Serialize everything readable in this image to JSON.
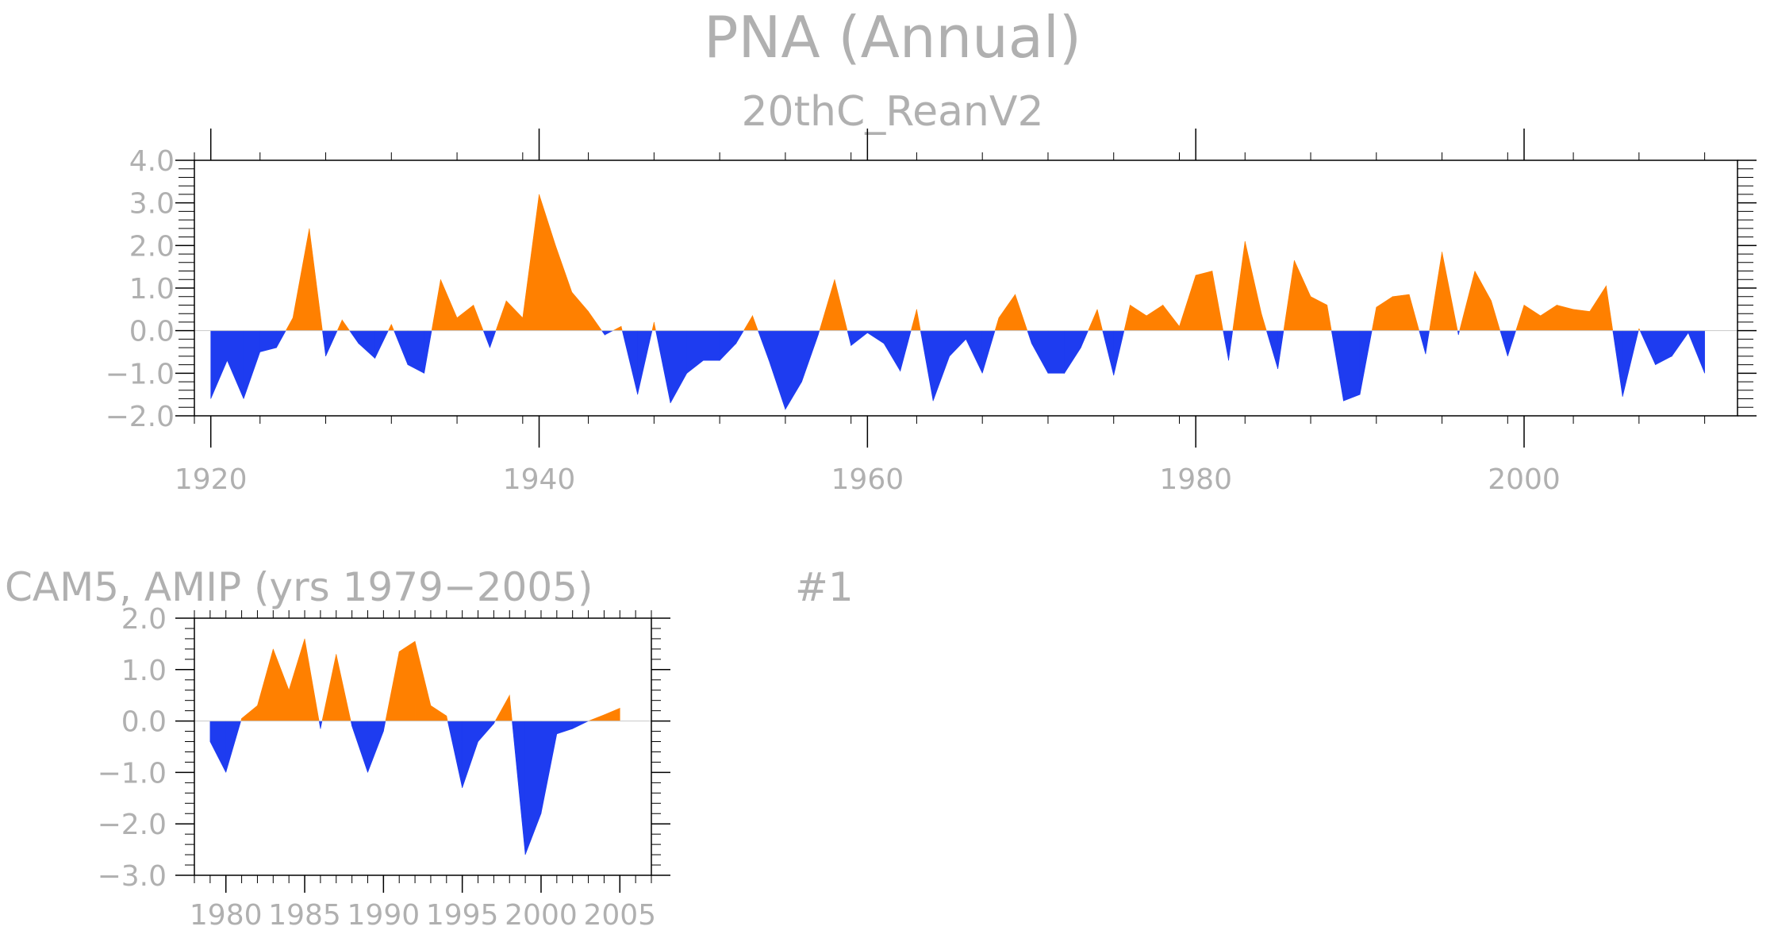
{
  "title": "PNA (Annual)",
  "colors": {
    "positive": "#ff8000",
    "negative": "#1e3cf0",
    "text": "#b0b0b0",
    "axis": "#000000"
  },
  "chart_data": [
    {
      "type": "area",
      "subtitle": "20thC_ReanV2",
      "xlim": [
        1919,
        2013
      ],
      "ylim": [
        -2.0,
        4.0
      ],
      "xticks": [
        1920,
        1940,
        1960,
        1980,
        2000
      ],
      "xtick_labels": [
        "1920",
        "1940",
        "1960",
        "1980",
        "2000"
      ],
      "yticks": [
        4.0,
        3.0,
        2.0,
        1.0,
        0.0,
        -1.0,
        -2.0
      ],
      "ytick_labels": [
        "4.0",
        "3.0",
        "2.0",
        "1.0",
        "0.0",
        "−1.0",
        "−2.0"
      ],
      "x_start": 1920,
      "values": [
        -1.6,
        -0.7,
        -1.6,
        -0.5,
        -0.4,
        0.3,
        2.4,
        -0.6,
        0.25,
        -0.3,
        -0.65,
        0.15,
        -0.8,
        -1.0,
        1.2,
        0.3,
        0.6,
        -0.4,
        0.7,
        0.3,
        3.2,
        2.0,
        0.9,
        0.45,
        -0.1,
        0.1,
        -1.5,
        0.2,
        -1.7,
        -1.0,
        -0.7,
        -0.7,
        -0.3,
        0.35,
        -0.7,
        -1.85,
        -1.2,
        -0.1,
        1.2,
        -0.35,
        -0.05,
        -0.3,
        -0.95,
        0.5,
        -1.65,
        -0.6,
        -0.2,
        -1.0,
        0.3,
        0.85,
        -0.3,
        -1.0,
        -1.0,
        -0.4,
        0.5,
        -1.05,
        0.6,
        0.35,
        0.6,
        0.1,
        1.3,
        1.4,
        -0.7,
        2.1,
        0.4,
        -0.9,
        1.65,
        0.8,
        0.6,
        -1.65,
        -1.5,
        0.55,
        0.8,
        0.85,
        -0.55,
        1.85,
        -0.1,
        1.4,
        0.7,
        -0.6,
        0.6,
        0.35,
        0.6,
        0.5,
        0.45,
        1.05,
        -1.55,
        0.05,
        -0.8,
        -0.6,
        -0.05,
        -1.0
      ]
    },
    {
      "type": "area",
      "subtitle": "CAM5, AMIP (yrs 1979−2005)",
      "label": "#1",
      "xlim": [
        1978,
        2007
      ],
      "ylim": [
        -3.0,
        2.0
      ],
      "xticks": [
        1980,
        1985,
        1990,
        1995,
        2000,
        2005
      ],
      "xtick_labels": [
        "1980",
        "1985",
        "1990",
        "1995",
        "2000",
        "2005"
      ],
      "yticks": [
        2.0,
        1.0,
        0.0,
        -1.0,
        -2.0,
        -3.0
      ],
      "ytick_labels": [
        "2.0",
        "1.0",
        "0.0",
        "−1.0",
        "−2.0",
        "−3.0"
      ],
      "x_start": 1979,
      "values": [
        -0.4,
        -1.0,
        0.05,
        0.3,
        1.4,
        0.6,
        1.6,
        -0.15,
        1.3,
        -0.1,
        -1.0,
        -0.2,
        1.35,
        1.55,
        0.3,
        0.1,
        -1.3,
        -0.4,
        -0.05,
        0.5,
        -2.6,
        -1.8,
        -0.25,
        -0.15,
        0.0,
        0.12,
        0.25
      ]
    }
  ]
}
